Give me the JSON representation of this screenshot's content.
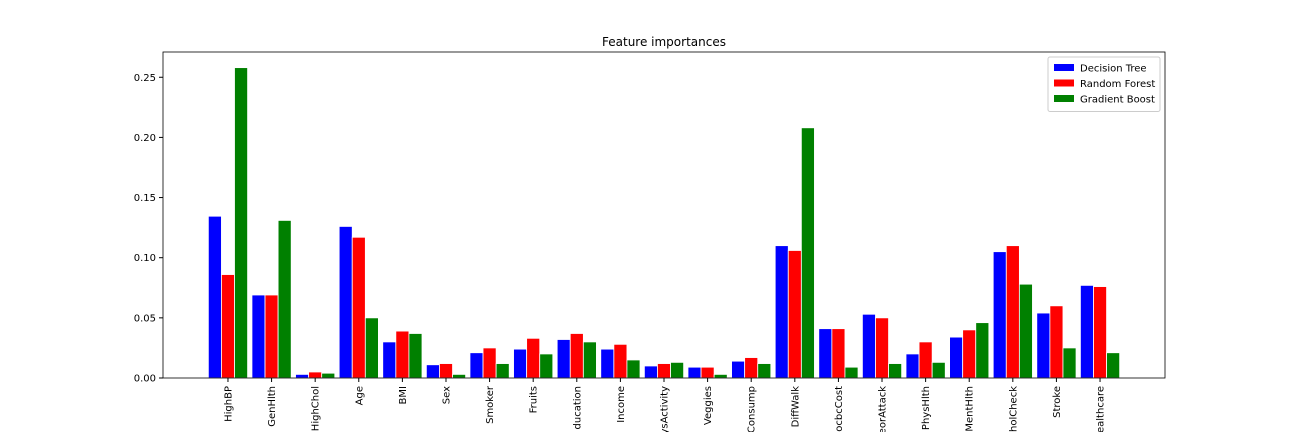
{
  "chart_data": {
    "type": "bar",
    "title": "Feature importances",
    "categories": [
      "HighBP",
      "GenHlth",
      "HighChol",
      "Age",
      "BMI",
      "Sex",
      "Smoker",
      "Fruits",
      "ducation",
      "Income",
      "ysActivity",
      "Veggies",
      "Consump",
      "DiffWalk",
      "ocbcCost",
      "eorAttack",
      "PhysHlth",
      "MentHlth",
      "holCheck",
      "Stroke",
      "ealthcare"
    ],
    "series": [
      {
        "name": "Decision Tree",
        "color": "#0000ff",
        "values": [
          0.1345,
          0.069,
          0.003,
          0.126,
          0.03,
          0.011,
          0.021,
          0.024,
          0.032,
          0.024,
          0.01,
          0.009,
          0.014,
          0.11,
          0.041,
          0.053,
          0.02,
          0.034,
          0.105,
          0.054,
          0.077
        ]
      },
      {
        "name": "Random Forest",
        "color": "#ff0000",
        "values": [
          0.086,
          0.069,
          0.005,
          0.117,
          0.039,
          0.012,
          0.025,
          0.033,
          0.037,
          0.028,
          0.012,
          0.009,
          0.017,
          0.106,
          0.041,
          0.05,
          0.03,
          0.04,
          0.11,
          0.06,
          0.076
        ]
      },
      {
        "name": "Gradient Boost",
        "color": "#008000",
        "values": [
          0.258,
          0.131,
          0.004,
          0.05,
          0.037,
          0.003,
          0.012,
          0.02,
          0.03,
          0.015,
          0.013,
          0.003,
          0.012,
          0.208,
          0.009,
          0.012,
          0.013,
          0.046,
          0.078,
          0.025,
          0.021
        ]
      }
    ],
    "ylim": [
      0,
      0.271
    ],
    "yticks": [
      {
        "value": 0,
        "label": "0.00"
      },
      0.05,
      {
        "value": 0.1,
        "label": "0.10"
      },
      0.15,
      {
        "value": 0.2,
        "label": "0.20"
      },
      0.25
    ],
    "legend": "upper right"
  }
}
